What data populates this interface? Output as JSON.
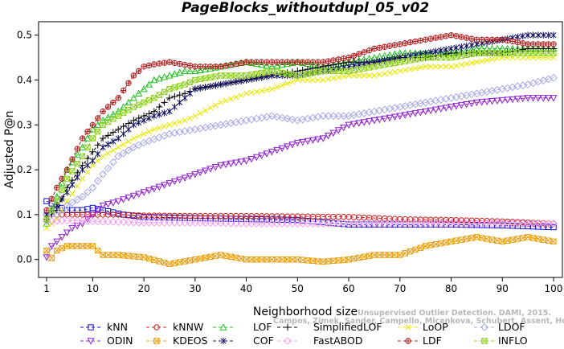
{
  "chart_data": {
    "type": "line",
    "title": "PageBlocks_withoutdupl_05_v02",
    "xlabel": "Neighborhood size",
    "ylabel": "Adjusted P@n",
    "xlim": [
      1,
      100
    ],
    "ylim": [
      -0.04,
      0.53
    ],
    "x_ticks": [
      1,
      10,
      20,
      30,
      40,
      50,
      60,
      70,
      80,
      90,
      100
    ],
    "y_ticks": [
      0.0,
      0.1,
      0.2,
      0.3,
      0.4,
      0.5
    ],
    "x_tick_labels": [
      "1",
      "10",
      "20",
      "30",
      "40",
      "50",
      "60",
      "70",
      "80",
      "90",
      "100"
    ],
    "y_tick_labels": [
      "0.0",
      "0.1",
      "0.2",
      "0.3",
      "0.4",
      "0.5"
    ],
    "grid": false,
    "legend_position": "bottom",
    "credit_lines": [
      "Unsupervised Outlier Detection. DAMI, 2015.",
      "Campos, Zimek, Sander, Campello, Micenkova, Schubert, Assent, Houle"
    ],
    "series": [
      {
        "name": "kNN",
        "color": "#1010d0",
        "marker": "square",
        "points": [
          [
            1,
            0.13
          ],
          [
            3,
            0.12
          ],
          [
            5,
            0.11
          ],
          [
            8,
            0.11
          ],
          [
            10,
            0.115
          ],
          [
            12,
            0.11
          ],
          [
            14,
            0.105
          ],
          [
            16,
            0.1
          ],
          [
            20,
            0.095
          ],
          [
            30,
            0.092
          ],
          [
            40,
            0.09
          ],
          [
            50,
            0.088
          ],
          [
            60,
            0.078
          ],
          [
            70,
            0.078
          ],
          [
            80,
            0.078
          ],
          [
            90,
            0.076
          ],
          [
            100,
            0.072
          ]
        ]
      },
      {
        "name": "kNNW",
        "color": "#d02020",
        "marker": "circle",
        "points": [
          [
            1,
            0.1
          ],
          [
            5,
            0.1
          ],
          [
            10,
            0.1
          ],
          [
            15,
            0.1
          ],
          [
            20,
            0.098
          ],
          [
            30,
            0.097
          ],
          [
            40,
            0.097
          ],
          [
            50,
            0.096
          ],
          [
            60,
            0.095
          ],
          [
            70,
            0.09
          ],
          [
            80,
            0.088
          ],
          [
            90,
            0.085
          ],
          [
            100,
            0.08
          ]
        ]
      },
      {
        "name": "LOF",
        "color": "#20c020",
        "marker": "triangle",
        "points": [
          [
            1,
            0.08
          ],
          [
            3,
            0.14
          ],
          [
            5,
            0.2
          ],
          [
            8,
            0.25
          ],
          [
            10,
            0.29
          ],
          [
            12,
            0.31
          ],
          [
            15,
            0.33
          ],
          [
            18,
            0.36
          ],
          [
            20,
            0.38
          ],
          [
            22,
            0.4
          ],
          [
            25,
            0.41
          ],
          [
            28,
            0.42
          ],
          [
            30,
            0.42
          ],
          [
            35,
            0.43
          ],
          [
            40,
            0.44
          ],
          [
            45,
            0.43
          ],
          [
            50,
            0.44
          ],
          [
            55,
            0.43
          ],
          [
            60,
            0.44
          ],
          [
            65,
            0.45
          ],
          [
            70,
            0.46
          ],
          [
            75,
            0.46
          ],
          [
            80,
            0.46
          ],
          [
            85,
            0.47
          ],
          [
            90,
            0.47
          ],
          [
            95,
            0.47
          ],
          [
            100,
            0.47
          ]
        ]
      },
      {
        "name": "SimplifiedLOF",
        "color": "#000000",
        "marker": "plus",
        "points": [
          [
            1,
            0.09
          ],
          [
            3,
            0.11
          ],
          [
            5,
            0.16
          ],
          [
            8,
            0.21
          ],
          [
            10,
            0.24
          ],
          [
            12,
            0.27
          ],
          [
            15,
            0.29
          ],
          [
            18,
            0.31
          ],
          [
            20,
            0.32
          ],
          [
            22,
            0.33
          ],
          [
            25,
            0.36
          ],
          [
            28,
            0.37
          ],
          [
            30,
            0.38
          ],
          [
            35,
            0.39
          ],
          [
            40,
            0.4
          ],
          [
            45,
            0.41
          ],
          [
            50,
            0.42
          ],
          [
            55,
            0.43
          ],
          [
            60,
            0.44
          ],
          [
            65,
            0.44
          ],
          [
            70,
            0.45
          ],
          [
            75,
            0.45
          ],
          [
            80,
            0.46
          ],
          [
            85,
            0.46
          ],
          [
            90,
            0.46
          ],
          [
            95,
            0.47
          ],
          [
            100,
            0.47
          ]
        ]
      },
      {
        "name": "LoOP",
        "color": "#e8e800",
        "marker": "x",
        "points": [
          [
            1,
            0.07
          ],
          [
            3,
            0.09
          ],
          [
            5,
            0.13
          ],
          [
            8,
            0.18
          ],
          [
            10,
            0.21
          ],
          [
            12,
            0.23
          ],
          [
            15,
            0.25
          ],
          [
            18,
            0.27
          ],
          [
            20,
            0.28
          ],
          [
            22,
            0.29
          ],
          [
            25,
            0.3
          ],
          [
            28,
            0.31
          ],
          [
            30,
            0.32
          ],
          [
            35,
            0.35
          ],
          [
            40,
            0.37
          ],
          [
            45,
            0.38
          ],
          [
            50,
            0.4
          ],
          [
            55,
            0.4
          ],
          [
            60,
            0.41
          ],
          [
            65,
            0.41
          ],
          [
            70,
            0.42
          ],
          [
            75,
            0.43
          ],
          [
            80,
            0.43
          ],
          [
            85,
            0.44
          ],
          [
            90,
            0.45
          ],
          [
            95,
            0.45
          ],
          [
            100,
            0.45
          ]
        ]
      },
      {
        "name": "LDOF",
        "color": "#a8a8e8",
        "marker": "diamond",
        "points": [
          [
            1,
            0.1
          ],
          [
            3,
            0.1
          ],
          [
            5,
            0.12
          ],
          [
            8,
            0.14
          ],
          [
            10,
            0.16
          ],
          [
            12,
            0.19
          ],
          [
            15,
            0.23
          ],
          [
            18,
            0.25
          ],
          [
            20,
            0.26
          ],
          [
            25,
            0.28
          ],
          [
            30,
            0.29
          ],
          [
            35,
            0.3
          ],
          [
            40,
            0.31
          ],
          [
            45,
            0.32
          ],
          [
            50,
            0.31
          ],
          [
            55,
            0.32
          ],
          [
            60,
            0.32
          ],
          [
            65,
            0.33
          ],
          [
            70,
            0.34
          ],
          [
            75,
            0.35
          ],
          [
            80,
            0.36
          ],
          [
            85,
            0.37
          ],
          [
            90,
            0.38
          ],
          [
            95,
            0.39
          ],
          [
            100,
            0.405
          ]
        ]
      },
      {
        "name": "ODIN",
        "color": "#9020d0",
        "marker": "triangle-down",
        "points": [
          [
            1,
            0.005
          ],
          [
            2,
            0.03
          ],
          [
            4,
            0.05
          ],
          [
            6,
            0.07
          ],
          [
            8,
            0.08
          ],
          [
            10,
            0.1
          ],
          [
            12,
            0.12
          ],
          [
            15,
            0.13
          ],
          [
            20,
            0.15
          ],
          [
            25,
            0.17
          ],
          [
            30,
            0.19
          ],
          [
            35,
            0.21
          ],
          [
            40,
            0.22
          ],
          [
            45,
            0.24
          ],
          [
            50,
            0.26
          ],
          [
            55,
            0.27
          ],
          [
            60,
            0.3
          ],
          [
            65,
            0.31
          ],
          [
            70,
            0.32
          ],
          [
            75,
            0.33
          ],
          [
            80,
            0.34
          ],
          [
            85,
            0.35
          ],
          [
            90,
            0.355
          ],
          [
            95,
            0.36
          ],
          [
            100,
            0.36
          ]
        ]
      },
      {
        "name": "KDEOS",
        "color": "#e8a010",
        "marker": "square-x",
        "points": [
          [
            1,
            0.02
          ],
          [
            2,
            0.003
          ],
          [
            3,
            0.02
          ],
          [
            5,
            0.03
          ],
          [
            8,
            0.03
          ],
          [
            10,
            0.03
          ],
          [
            12,
            0.01
          ],
          [
            15,
            0.01
          ],
          [
            20,
            0.005
          ],
          [
            25,
            -0.01
          ],
          [
            30,
            0.0
          ],
          [
            35,
            0.01
          ],
          [
            40,
            0.0
          ],
          [
            45,
            0.0
          ],
          [
            50,
            0.0
          ],
          [
            55,
            -0.005
          ],
          [
            60,
            0.0
          ],
          [
            65,
            0.01
          ],
          [
            70,
            0.01
          ],
          [
            75,
            0.03
          ],
          [
            80,
            0.04
          ],
          [
            85,
            0.05
          ],
          [
            90,
            0.04
          ],
          [
            95,
            0.05
          ],
          [
            100,
            0.04
          ]
        ]
      },
      {
        "name": "COF",
        "color": "#101060",
        "marker": "asterisk",
        "points": [
          [
            1,
            0.1
          ],
          [
            3,
            0.12
          ],
          [
            5,
            0.15
          ],
          [
            8,
            0.2
          ],
          [
            10,
            0.22
          ],
          [
            12,
            0.25
          ],
          [
            15,
            0.27
          ],
          [
            18,
            0.3
          ],
          [
            20,
            0.31
          ],
          [
            22,
            0.32
          ],
          [
            25,
            0.33
          ],
          [
            28,
            0.36
          ],
          [
            30,
            0.38
          ],
          [
            35,
            0.39
          ],
          [
            40,
            0.4
          ],
          [
            45,
            0.41
          ],
          [
            50,
            0.41
          ],
          [
            55,
            0.42
          ],
          [
            60,
            0.43
          ],
          [
            65,
            0.44
          ],
          [
            70,
            0.45
          ],
          [
            75,
            0.46
          ],
          [
            80,
            0.47
          ],
          [
            85,
            0.48
          ],
          [
            90,
            0.49
          ],
          [
            95,
            0.5
          ],
          [
            100,
            0.5
          ]
        ]
      },
      {
        "name": "FastABOD",
        "color": "#f0a0f0",
        "marker": "diamond",
        "points": [
          [
            1,
            0.085
          ],
          [
            5,
            0.087
          ],
          [
            10,
            0.085
          ],
          [
            20,
            0.082
          ],
          [
            30,
            0.082
          ],
          [
            40,
            0.08
          ],
          [
            50,
            0.08
          ],
          [
            60,
            0.08
          ],
          [
            70,
            0.08
          ],
          [
            80,
            0.08
          ],
          [
            90,
            0.08
          ],
          [
            100,
            0.08
          ]
        ]
      },
      {
        "name": "LDF",
        "color": "#b02020",
        "marker": "circle-plus",
        "points": [
          [
            1,
            0.11
          ],
          [
            3,
            0.16
          ],
          [
            5,
            0.2
          ],
          [
            8,
            0.27
          ],
          [
            10,
            0.3
          ],
          [
            12,
            0.33
          ],
          [
            15,
            0.36
          ],
          [
            18,
            0.41
          ],
          [
            20,
            0.43
          ],
          [
            22,
            0.435
          ],
          [
            25,
            0.44
          ],
          [
            30,
            0.43
          ],
          [
            35,
            0.43
          ],
          [
            40,
            0.44
          ],
          [
            45,
            0.44
          ],
          [
            50,
            0.44
          ],
          [
            55,
            0.44
          ],
          [
            60,
            0.45
          ],
          [
            65,
            0.47
          ],
          [
            70,
            0.48
          ],
          [
            75,
            0.49
          ],
          [
            80,
            0.5
          ],
          [
            85,
            0.49
          ],
          [
            90,
            0.49
          ],
          [
            95,
            0.48
          ],
          [
            100,
            0.48
          ]
        ]
      },
      {
        "name": "INFLO",
        "color": "#90d020",
        "marker": "square-x",
        "points": [
          [
            1,
            0.09
          ],
          [
            3,
            0.13
          ],
          [
            5,
            0.18
          ],
          [
            8,
            0.23
          ],
          [
            10,
            0.27
          ],
          [
            12,
            0.3
          ],
          [
            15,
            0.32
          ],
          [
            18,
            0.34
          ],
          [
            20,
            0.35
          ],
          [
            22,
            0.36
          ],
          [
            25,
            0.38
          ],
          [
            28,
            0.39
          ],
          [
            30,
            0.4
          ],
          [
            35,
            0.41
          ],
          [
            40,
            0.41
          ],
          [
            45,
            0.42
          ],
          [
            50,
            0.41
          ],
          [
            55,
            0.42
          ],
          [
            60,
            0.42
          ],
          [
            65,
            0.43
          ],
          [
            70,
            0.44
          ],
          [
            75,
            0.45
          ],
          [
            80,
            0.45
          ],
          [
            85,
            0.46
          ],
          [
            90,
            0.46
          ],
          [
            95,
            0.46
          ],
          [
            100,
            0.46
          ]
        ]
      }
    ]
  }
}
